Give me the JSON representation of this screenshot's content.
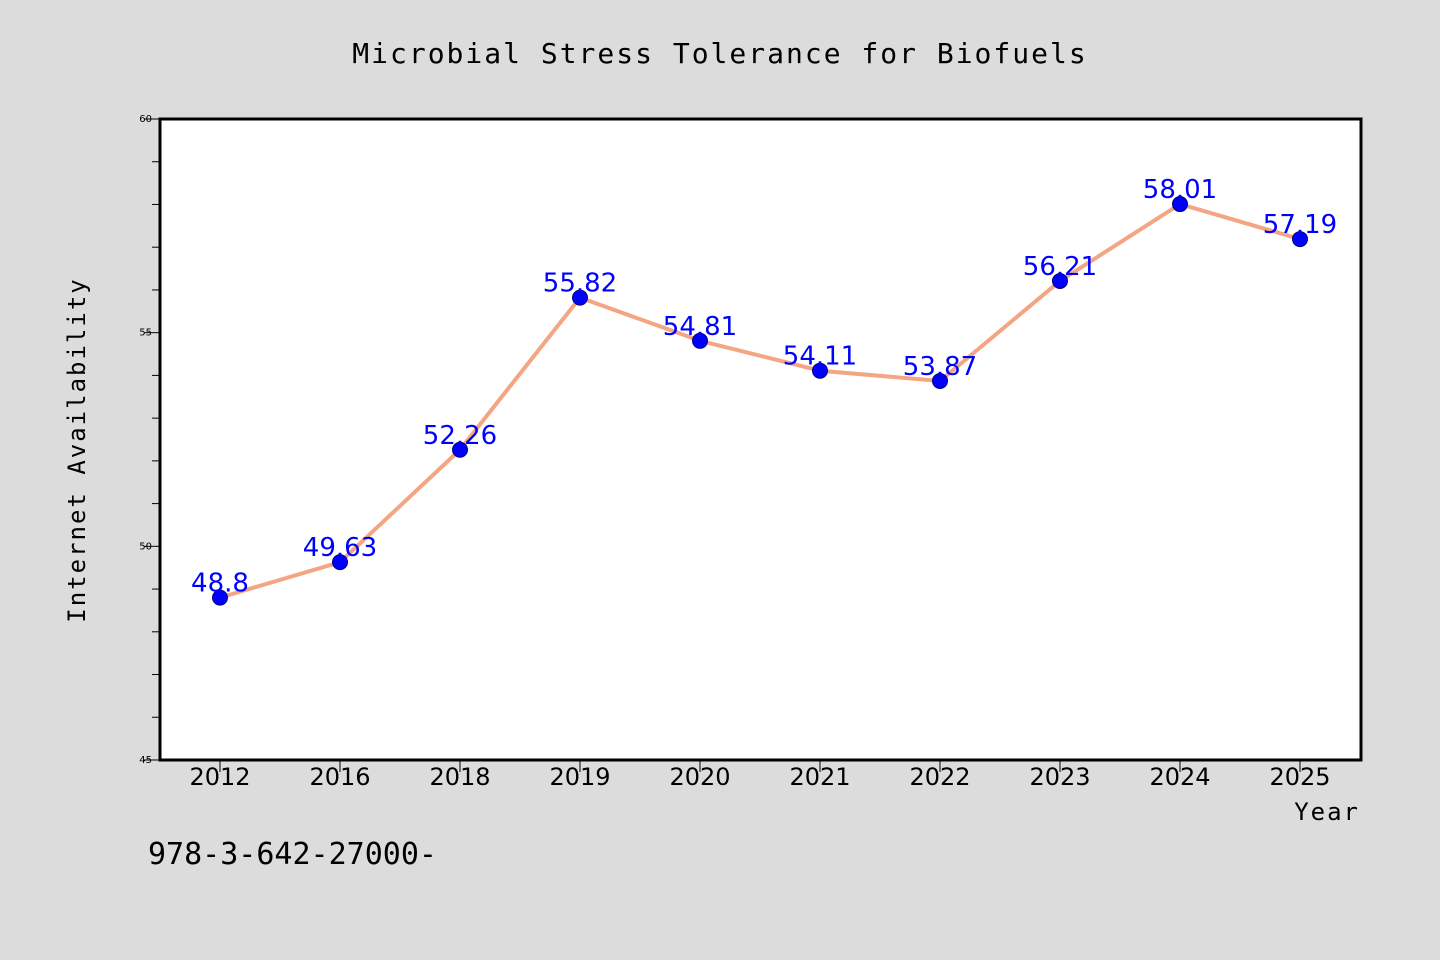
{
  "chart_data": {
    "type": "line",
    "title": "Microbial Stress Tolerance for Biofuels",
    "xlabel": "Year",
    "ylabel": "Internet Availability",
    "categories": [
      "2012",
      "2016",
      "2018",
      "2019",
      "2020",
      "2021",
      "2022",
      "2023",
      "2024",
      "2025"
    ],
    "series": [
      {
        "values": [
          48.8,
          49.63,
          52.26,
          55.82,
          54.81,
          54.11,
          53.87,
          56.21,
          58.01,
          57.19
        ],
        "labels": [
          "48.8",
          "49.63",
          "52.26",
          "55.82",
          "54.81",
          "54.11",
          "53.87",
          "56.21",
          "58.01",
          "57.19"
        ],
        "line_color": "#f4a582",
        "marker_color": "#0000ff"
      }
    ],
    "ylim": [
      45,
      60
    ],
    "yticks": [
      "45",
      "50",
      "55",
      "60"
    ],
    "grid": false,
    "legend": "none"
  },
  "annotation": "978-3-642-27000-",
  "colors": {
    "figure_background": "#dcdcdc",
    "plot_background": "#ffffff",
    "line": "#f4a582",
    "marker": "#0000ff",
    "data_label": "#0000ff"
  }
}
